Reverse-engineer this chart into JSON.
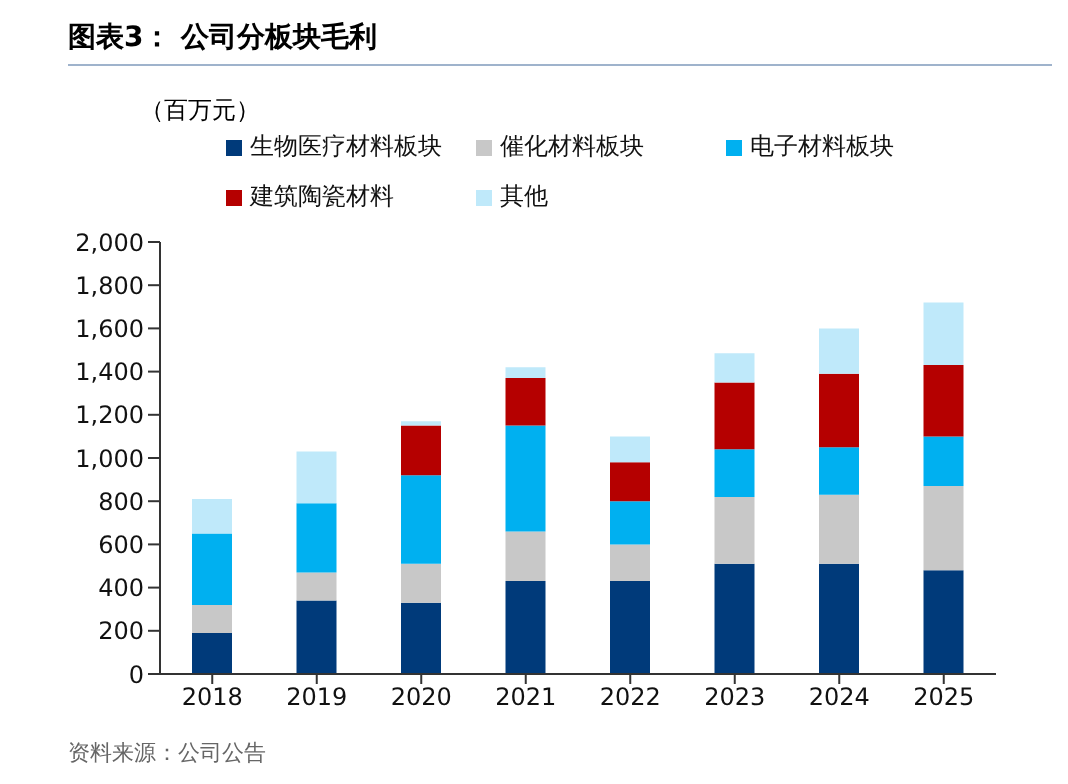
{
  "chart_data": {
    "type": "bar",
    "stacked": true,
    "title": "图表3： 公司分板块毛利",
    "ylabel": "（百万元）",
    "categories": [
      "2018",
      "2019",
      "2020",
      "2021",
      "2022",
      "2023",
      "2024",
      "2025"
    ],
    "series": [
      {
        "name": "生物医疗材料板块",
        "color": "#003a7a",
        "values": [
          190,
          340,
          330,
          430,
          430,
          510,
          510,
          480
        ]
      },
      {
        "name": "催化材料板块",
        "color": "#c8c8c8",
        "values": [
          130,
          130,
          180,
          230,
          170,
          310,
          320,
          390
        ]
      },
      {
        "name": "电子材料板块",
        "color": "#00b0f0",
        "values": [
          330,
          320,
          410,
          490,
          200,
          220,
          220,
          230
        ]
      },
      {
        "name": "建筑陶瓷材料",
        "color": "#b50000",
        "values": [
          null,
          null,
          230,
          220,
          180,
          310,
          340,
          330
        ]
      },
      {
        "name": "其他",
        "color": "#bfe9fa",
        "values": [
          160,
          240,
          20,
          50,
          120,
          135,
          210,
          290
        ]
      }
    ],
    "ylim": [
      0,
      2000
    ],
    "yticks": [
      0,
      200,
      400,
      600,
      800,
      {
        "value": 1000,
        "label": "1,000"
      },
      {
        "value": 1200,
        "label": "1,200"
      },
      {
        "value": 1400,
        "label": "1,400"
      },
      {
        "value": 1600,
        "label": "1,600"
      },
      {
        "value": 1800,
        "label": "1,800"
      },
      {
        "value": 2000,
        "label": "2,000"
      }
    ],
    "grid": false,
    "legend": "top",
    "annotations": [
      "资料来源：公司公告"
    ]
  }
}
